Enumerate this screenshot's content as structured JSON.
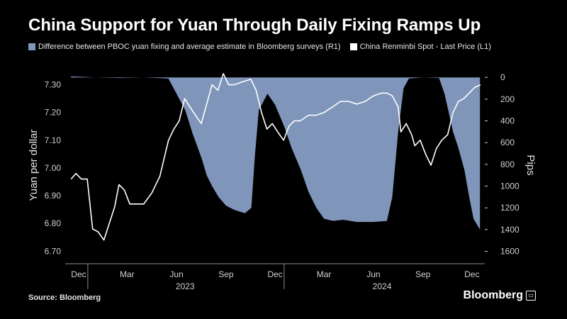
{
  "header": {
    "title": "China Support for Yuan Through Daily Fixing Ramps Up"
  },
  "footer": {
    "source": "Source: Bloomberg",
    "brand": "Bloomberg",
    "brand_icon": "bloomberg-terminal-icon"
  },
  "colors": {
    "background": "#000000",
    "area": "#7f95b9",
    "line": "#ffffff",
    "ticks": "#cfcfcf"
  },
  "chart_data": {
    "type": "area+line",
    "title": "China Support for Yuan Through Daily Fixing Ramps Up",
    "ylabel_left": "Yuan per dollar",
    "ylabel_right": "Pips",
    "ylim_left": [
      6.67,
      7.35
    ],
    "ylim_right": [
      1675,
      -60
    ],
    "yticks_left": [
      "7.30",
      "7.20",
      "7.10",
      "7.00",
      "6.90",
      "6.80",
      "6.70"
    ],
    "yticks_right": [
      "0",
      "200",
      "400",
      "600",
      "800",
      "1000",
      "1200",
      "1400",
      "1600"
    ],
    "x_month_ticks": [
      "Dec",
      "Mar",
      "Jun",
      "Sep",
      "Dec",
      "Mar",
      "Jun",
      "Sep",
      "Dec"
    ],
    "x_year_labels": [
      "2023",
      "2024"
    ],
    "legend_position": "top-left",
    "series": [
      {
        "name": "Difference between PBOC yuan fixing and average estimate in Bloomberg surveys (R1)",
        "axis": "right",
        "style": "area",
        "color": "#7f95b9",
        "points": [
          [
            "2022-12-01",
            -10
          ],
          [
            "2023-01-15",
            0
          ],
          [
            "2023-03-01",
            5
          ],
          [
            "2023-04-15",
            0
          ],
          [
            "2023-05-31",
            10
          ],
          [
            "2023-06-03",
            40
          ],
          [
            "2023-06-15",
            150
          ],
          [
            "2023-07-01",
            300
          ],
          [
            "2023-07-15",
            520
          ],
          [
            "2023-08-01",
            750
          ],
          [
            "2023-08-10",
            900
          ],
          [
            "2023-08-20",
            1000
          ],
          [
            "2023-09-01",
            1100
          ],
          [
            "2023-09-15",
            1180
          ],
          [
            "2023-10-01",
            1220
          ],
          [
            "2023-10-20",
            1250
          ],
          [
            "2023-11-01",
            1200
          ],
          [
            "2023-11-08",
            700
          ],
          [
            "2023-11-15",
            300
          ],
          [
            "2023-12-01",
            150
          ],
          [
            "2023-12-15",
            250
          ],
          [
            "2024-01-01",
            450
          ],
          [
            "2024-01-15",
            650
          ],
          [
            "2024-02-01",
            850
          ],
          [
            "2024-02-15",
            1050
          ],
          [
            "2024-03-01",
            1200
          ],
          [
            "2024-03-15",
            1300
          ],
          [
            "2024-04-01",
            1320
          ],
          [
            "2024-04-20",
            1310
          ],
          [
            "2024-05-15",
            1330
          ],
          [
            "2024-06-15",
            1330
          ],
          [
            "2024-07-10",
            1320
          ],
          [
            "2024-07-20",
            1100
          ],
          [
            "2024-07-31",
            500
          ],
          [
            "2024-08-10",
            100
          ],
          [
            "2024-08-20",
            10
          ],
          [
            "2024-09-15",
            0
          ],
          [
            "2024-10-15",
            5
          ],
          [
            "2024-10-25",
            150
          ],
          [
            "2024-11-01",
            300
          ],
          [
            "2024-11-10",
            500
          ],
          [
            "2024-11-20",
            650
          ],
          [
            "2024-12-01",
            850
          ],
          [
            "2024-12-10",
            1100
          ],
          [
            "2024-12-18",
            1300
          ],
          [
            "2024-12-30",
            1400
          ]
        ]
      },
      {
        "name": "China Renminbi Spot - Last Price (L1)",
        "axis": "left",
        "style": "line",
        "color": "#ffffff",
        "points": [
          [
            "2022-12-01",
            6.96
          ],
          [
            "2022-12-10",
            6.98
          ],
          [
            "2022-12-20",
            6.96
          ],
          [
            "2022-12-31",
            6.96
          ],
          [
            "2023-01-10",
            6.78
          ],
          [
            "2023-01-20",
            6.77
          ],
          [
            "2023-01-31",
            6.74
          ],
          [
            "2023-02-10",
            6.8
          ],
          [
            "2023-02-20",
            6.86
          ],
          [
            "2023-02-28",
            6.94
          ],
          [
            "2023-03-10",
            6.92
          ],
          [
            "2023-03-20",
            6.87
          ],
          [
            "2023-03-31",
            6.87
          ],
          [
            "2023-04-15",
            6.87
          ],
          [
            "2023-04-30",
            6.91
          ],
          [
            "2023-05-15",
            6.97
          ],
          [
            "2023-05-31",
            7.1
          ],
          [
            "2023-06-10",
            7.14
          ],
          [
            "2023-06-20",
            7.17
          ],
          [
            "2023-06-30",
            7.25
          ],
          [
            "2023-07-10",
            7.22
          ],
          [
            "2023-07-20",
            7.19
          ],
          [
            "2023-07-31",
            7.16
          ],
          [
            "2023-08-10",
            7.23
          ],
          [
            "2023-08-20",
            7.3
          ],
          [
            "2023-08-31",
            7.28
          ],
          [
            "2023-09-10",
            7.34
          ],
          [
            "2023-09-20",
            7.3
          ],
          [
            "2023-09-30",
            7.3
          ],
          [
            "2023-10-15",
            7.31
          ],
          [
            "2023-10-31",
            7.32
          ],
          [
            "2023-11-10",
            7.28
          ],
          [
            "2023-11-20",
            7.2
          ],
          [
            "2023-11-30",
            7.14
          ],
          [
            "2023-12-10",
            7.16
          ],
          [
            "2023-12-20",
            7.13
          ],
          [
            "2023-12-31",
            7.1
          ],
          [
            "2024-01-10",
            7.15
          ],
          [
            "2024-01-20",
            7.17
          ],
          [
            "2024-01-31",
            7.17
          ],
          [
            "2024-02-15",
            7.19
          ],
          [
            "2024-02-29",
            7.19
          ],
          [
            "2024-03-15",
            7.2
          ],
          [
            "2024-03-31",
            7.22
          ],
          [
            "2024-04-15",
            7.24
          ],
          [
            "2024-04-30",
            7.24
          ],
          [
            "2024-05-15",
            7.23
          ],
          [
            "2024-05-31",
            7.24
          ],
          [
            "2024-06-15",
            7.26
          ],
          [
            "2024-06-30",
            7.27
          ],
          [
            "2024-07-10",
            7.27
          ],
          [
            "2024-07-20",
            7.26
          ],
          [
            "2024-07-31",
            7.22
          ],
          [
            "2024-08-05",
            7.13
          ],
          [
            "2024-08-15",
            7.16
          ],
          [
            "2024-08-25",
            7.12
          ],
          [
            "2024-08-31",
            7.08
          ],
          [
            "2024-09-10",
            7.1
          ],
          [
            "2024-09-20",
            7.05
          ],
          [
            "2024-09-30",
            7.01
          ],
          [
            "2024-10-10",
            7.07
          ],
          [
            "2024-10-20",
            7.1
          ],
          [
            "2024-10-31",
            7.12
          ],
          [
            "2024-11-10",
            7.2
          ],
          [
            "2024-11-20",
            7.24
          ],
          [
            "2024-11-30",
            7.25
          ],
          [
            "2024-12-10",
            7.27
          ],
          [
            "2024-12-20",
            7.29
          ],
          [
            "2024-12-31",
            7.3
          ]
        ]
      }
    ]
  }
}
